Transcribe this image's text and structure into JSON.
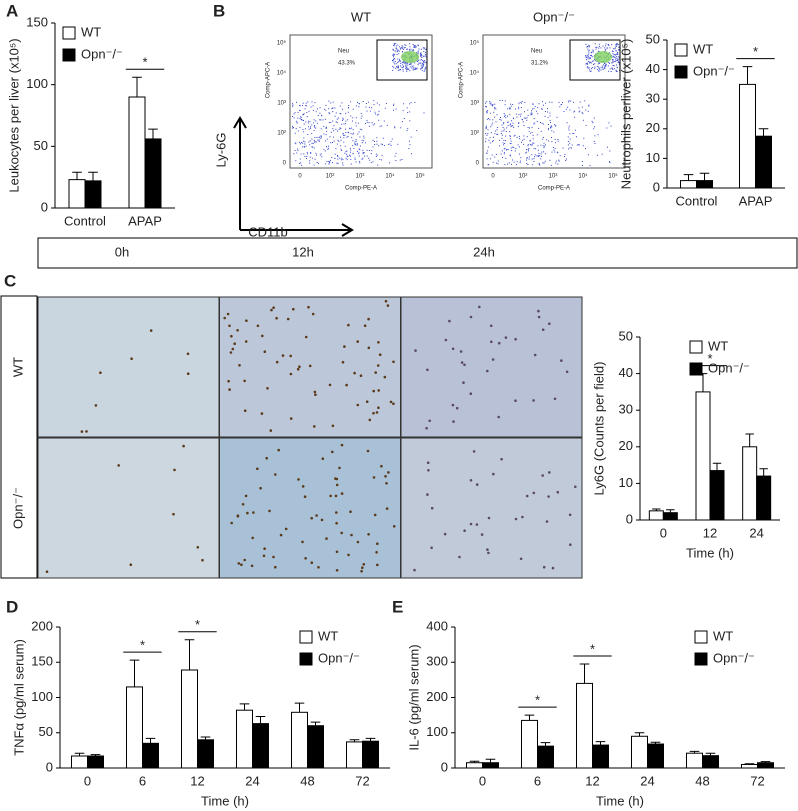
{
  "panel_labels": [
    "A",
    "B",
    "C",
    "D",
    "E"
  ],
  "flow": {
    "y_arrow_label": "Ly-6G",
    "x_arrow_label": "CD11b",
    "y_axis_label": "Comp-APC-A",
    "x_axis_label": "Comp-PE-A",
    "gate_label": "Neu",
    "y_tick_labels": [
      "10⁵",
      "10⁴",
      "10³",
      "10²",
      "0"
    ],
    "x_tick_labels": [
      "0",
      "10²",
      "10³",
      "10⁴",
      "10⁵"
    ],
    "plots": [
      {
        "title": "WT",
        "percent": "43.3%"
      },
      {
        "title": "Opn⁻/⁻",
        "percent": "31.2%"
      }
    ]
  },
  "histology": {
    "columns": [
      "0h",
      "12h",
      "24h"
    ],
    "rows": [
      "WT",
      "Opn⁻/⁻"
    ]
  },
  "chart_data": [
    {
      "type": "bar",
      "y_label": "Leukocytes per liver (x10⁵)",
      "categories": [
        "Control",
        "APAP"
      ],
      "ylim": [
        0,
        150
      ],
      "yticks": [
        0,
        50,
        100,
        150
      ],
      "legend": "upper left",
      "series": [
        {
          "name": "WT",
          "color": "#ffffff",
          "values": [
            23,
            90
          ],
          "errors": [
            6,
            16
          ]
        },
        {
          "name": "Opn⁻/⁻",
          "color": "#000000",
          "values": [
            22,
            56
          ],
          "errors": [
            7,
            8
          ]
        }
      ],
      "annotations": [
        {
          "text": "*",
          "category": "APAP"
        }
      ]
    },
    {
      "type": "bar",
      "y_label": "Neutrophils perliver (x10⁵)",
      "categories": [
        "Control",
        "APAP"
      ],
      "ylim": [
        0,
        50
      ],
      "yticks": [
        0,
        10,
        20,
        30,
        40,
        50
      ],
      "legend": "upper left",
      "series": [
        {
          "name": "WT",
          "color": "#ffffff",
          "values": [
            2.5,
            35
          ],
          "errors": [
            2,
            6
          ]
        },
        {
          "name": "Opn⁻/⁻",
          "color": "#000000",
          "values": [
            2.5,
            17.5
          ],
          "errors": [
            2.5,
            2.5
          ]
        }
      ],
      "annotations": [
        {
          "text": "*",
          "category": "APAP"
        }
      ]
    },
    {
      "type": "bar",
      "y_label": "Ly6G (Counts per field)",
      "x_label": "Time (h)",
      "categories": [
        "0",
        "12",
        "24"
      ],
      "ylim": [
        0,
        50
      ],
      "yticks": [
        0,
        10,
        20,
        30,
        40,
        50
      ],
      "legend": "upper right",
      "series": [
        {
          "name": "WT",
          "color": "#ffffff",
          "values": [
            2.5,
            35,
            20
          ],
          "errors": [
            0.5,
            5,
            3.5
          ]
        },
        {
          "name": "Opn⁻/⁻",
          "color": "#000000",
          "values": [
            2,
            13.5,
            12
          ],
          "errors": [
            0.8,
            2,
            2
          ]
        }
      ],
      "annotations": [
        {
          "text": "*",
          "category": "12"
        }
      ]
    },
    {
      "type": "bar",
      "y_label": "TNFα (pg/ml serum)",
      "x_label": "Time (h)",
      "categories": [
        "0",
        "6",
        "12",
        "24",
        "48",
        "72"
      ],
      "ylim": [
        0,
        200
      ],
      "yticks": [
        0,
        50,
        100,
        150,
        200
      ],
      "legend": "upper right",
      "series": [
        {
          "name": "WT",
          "color": "#ffffff",
          "values": [
            17,
            115,
            139,
            82,
            79,
            37
          ],
          "errors": [
            4,
            38,
            43,
            9,
            13,
            3
          ]
        },
        {
          "name": "Opn⁻/⁻",
          "color": "#000000",
          "values": [
            17,
            35,
            40,
            63,
            60,
            38
          ],
          "errors": [
            2,
            7,
            4,
            10,
            5,
            4
          ]
        }
      ],
      "annotations": [
        {
          "text": "*",
          "category": "6"
        },
        {
          "text": "*",
          "category": "12"
        }
      ]
    },
    {
      "type": "bar",
      "y_label": "IL-6 (pg/ml serum)",
      "x_label": "Time (h)",
      "categories": [
        "0",
        "6",
        "12",
        "24",
        "48",
        "72"
      ],
      "ylim": [
        0,
        400
      ],
      "yticks": [
        0,
        100,
        200,
        300,
        400
      ],
      "legend": "upper right",
      "series": [
        {
          "name": "WT",
          "color": "#ffffff",
          "values": [
            15,
            135,
            240,
            90,
            42,
            10
          ],
          "errors": [
            4,
            15,
            55,
            10,
            5,
            2
          ]
        },
        {
          "name": "Opn⁻/⁻",
          "color": "#000000",
          "values": [
            15,
            62,
            65,
            68,
            35,
            15
          ],
          "errors": [
            10,
            10,
            10,
            5,
            7,
            3
          ]
        }
      ],
      "annotations": [
        {
          "text": "*",
          "category": "6"
        },
        {
          "text": "*",
          "category": "12"
        }
      ]
    }
  ]
}
